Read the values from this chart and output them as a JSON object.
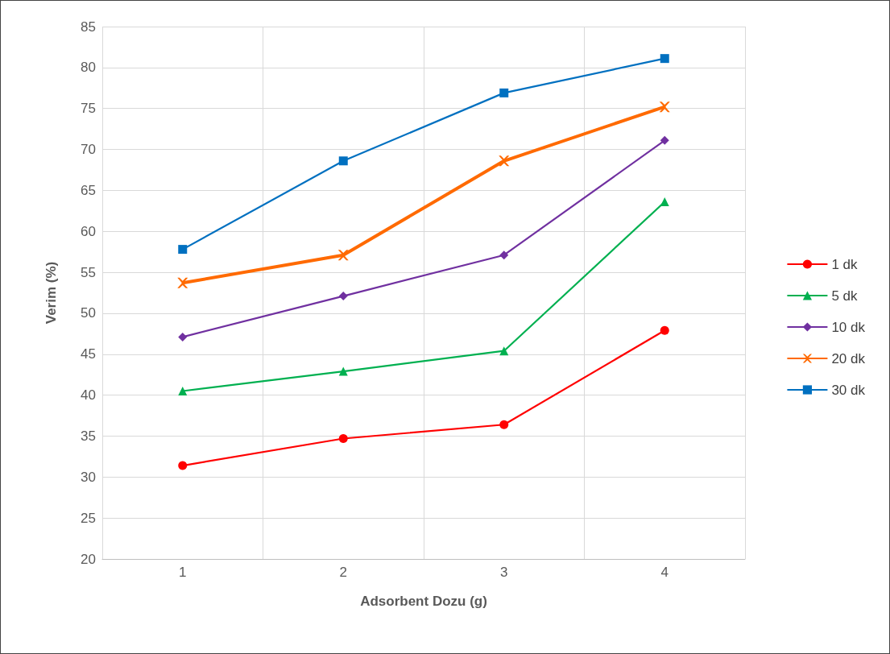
{
  "chart_data": {
    "type": "line",
    "xlabel": "Adsorbent Dozu (g)",
    "ylabel": "Verim (%)",
    "categories": [
      "1",
      "2",
      "3",
      "4"
    ],
    "ylim": [
      20,
      85
    ],
    "yticks": [
      20,
      25,
      30,
      35,
      40,
      45,
      50,
      55,
      60,
      65,
      70,
      75,
      80,
      85
    ],
    "grid": true,
    "legend": "right",
    "series": [
      {
        "name": "1 dk",
        "color": "#ff0000",
        "marker": "circle",
        "values": [
          31.4,
          34.7,
          36.4,
          47.9
        ]
      },
      {
        "name": "5 dk",
        "color": "#00b050",
        "marker": "triangle",
        "values": [
          40.5,
          42.9,
          45.4,
          63.6
        ]
      },
      {
        "name": "10 dk",
        "color": "#7030a0",
        "marker": "diamond",
        "values": [
          47.1,
          52.1,
          57.1,
          71.1
        ]
      },
      {
        "name": "20 dk",
        "color": "#ff6a00",
        "marker": "cross",
        "values": [
          53.7,
          57.1,
          68.6,
          75.2
        ]
      },
      {
        "name": "30 dk",
        "color": "#0070c0",
        "marker": "square",
        "values": [
          57.8,
          68.6,
          76.9,
          81.1
        ]
      }
    ]
  }
}
